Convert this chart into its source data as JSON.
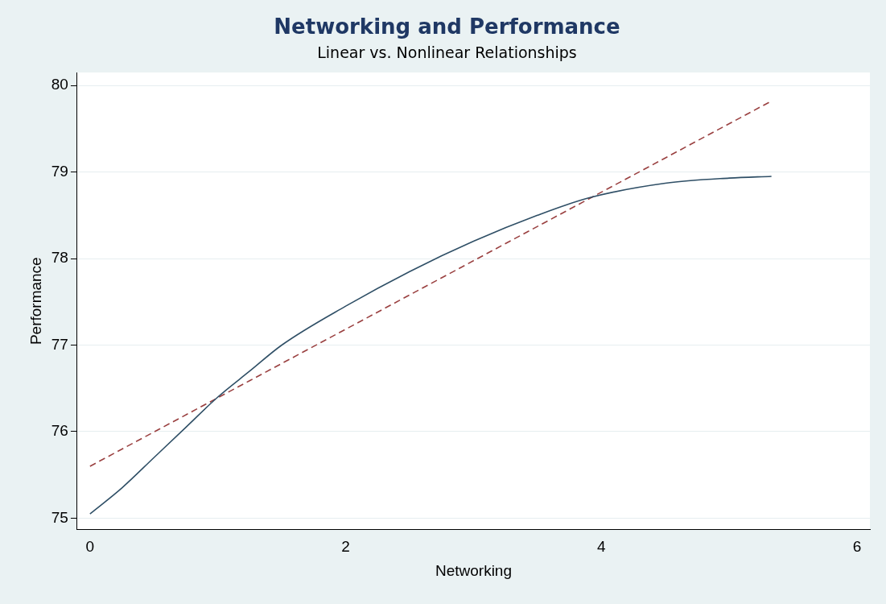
{
  "chart_data": {
    "type": "line",
    "title": "Networking and Performance",
    "subtitle": "Linear vs. Nonlinear Relationships",
    "xlabel": "Networking",
    "ylabel": "Performance",
    "xlim": [
      -0.1,
      6.1
    ],
    "xticks": [
      0,
      2,
      4,
      6
    ],
    "ylim": [
      74.87,
      80.15
    ],
    "yticks": [
      75,
      76,
      77,
      78,
      79,
      80
    ],
    "grid": "y",
    "legend": false,
    "marker": "none",
    "series": [
      {
        "color": "#2f4f66",
        "line_style": "solid",
        "x": [
          0,
          0.25,
          0.5,
          0.75,
          1,
          1.25,
          1.5,
          2,
          2.5,
          3,
          3.5,
          3.9,
          4.5,
          5,
          5.33
        ],
        "values": [
          75.05,
          75.35,
          75.7,
          76.05,
          76.4,
          76.7,
          77.0,
          77.45,
          77.85,
          78.2,
          78.5,
          78.7,
          78.87,
          78.93,
          78.95
        ]
      },
      {
        "color": "#9a4040",
        "line_style": "dashed",
        "x": [
          0,
          5.33
        ],
        "values": [
          75.6,
          79.82
        ]
      }
    ]
  }
}
